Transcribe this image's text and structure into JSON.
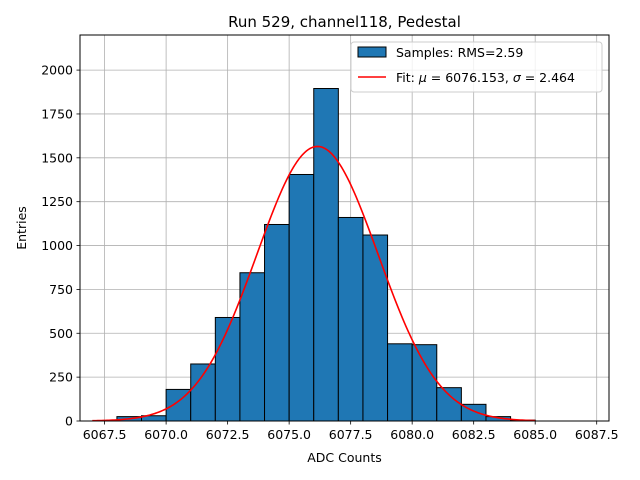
{
  "chart_data": {
    "type": "bar",
    "title": "Run 529, channel118, Pedestal",
    "xlabel": "ADC Counts",
    "ylabel": "Entries",
    "xlim": [
      6066.5,
      6088
    ],
    "ylim": [
      0,
      2200
    ],
    "grid": true,
    "legend_position": "top-right",
    "xticks": [
      6067.5,
      6070.0,
      6072.5,
      6075.0,
      6077.5,
      6080.0,
      6082.5,
      6085.0,
      6087.5
    ],
    "xtick_labels": [
      "6067.5",
      "6070.0",
      "6072.5",
      "6075.0",
      "6077.5",
      "6080.0",
      "6082.5",
      "6085.0",
      "6087.5"
    ],
    "yticks": [
      0,
      250,
      500,
      750,
      1000,
      1250,
      1500,
      1750,
      2000
    ],
    "ytick_labels": [
      "0",
      "250",
      "500",
      "750",
      "1000",
      "1250",
      "1500",
      "1750",
      "2000"
    ],
    "histogram": {
      "name": "Samples: RMS=2.59",
      "color": "#1f77b4",
      "edgecolor": "#000000",
      "bin_edges": [
        6067,
        6068,
        6069,
        6070,
        6071,
        6072,
        6073,
        6074,
        6075,
        6076,
        6077,
        6078,
        6079,
        6080,
        6081,
        6082,
        6083,
        6084,
        6085,
        6086,
        6087
      ],
      "values": [
        0,
        25,
        30,
        180,
        325,
        590,
        845,
        1120,
        1405,
        1895,
        1160,
        1060,
        440,
        435,
        190,
        95,
        25,
        5,
        0,
        0
      ]
    },
    "fit": {
      "name_prefix": "Fit: ",
      "mu_symbol": "μ",
      "sigma_symbol": "σ",
      "mu": 6076.153,
      "sigma": 2.464,
      "mu_text": " = 6076.153, ",
      "sigma_text": " = 2.464",
      "amplitude": 1565,
      "x_range": [
        6067,
        6085
      ],
      "color": "#ff0000"
    }
  }
}
